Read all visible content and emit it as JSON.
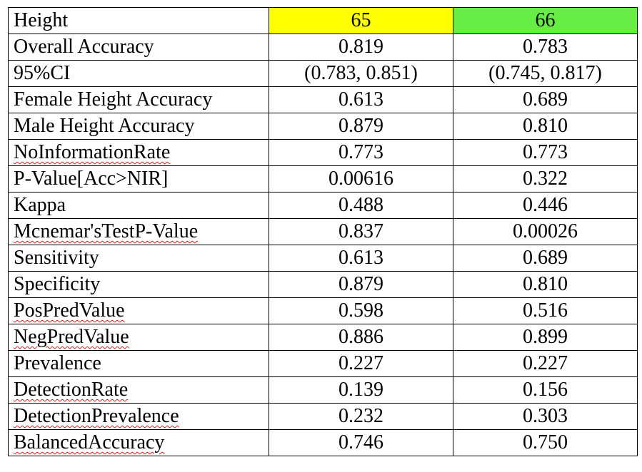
{
  "table": {
    "header": {
      "label": "Height",
      "columns": [
        "65",
        "66"
      ],
      "column_colors": [
        "#ffff00",
        "#66ee44"
      ]
    },
    "rows": [
      {
        "label": "Overall Accuracy",
        "values": [
          "0.819",
          "0.783"
        ]
      },
      {
        "label": "95%CI",
        "values": [
          "(0.783, 0.851)",
          "(0.745, 0.817)"
        ]
      },
      {
        "label": "Female Height Accuracy",
        "values": [
          "0.613",
          "0.689"
        ]
      },
      {
        "label": "Male Height Accuracy",
        "values": [
          "0.879",
          "0.810"
        ]
      },
      {
        "label": "NoInformationRate",
        "values": [
          "0.773",
          "0.773"
        ]
      },
      {
        "label": "P-Value[Acc>NIR]",
        "values": [
          "0.00616",
          "0.322"
        ]
      },
      {
        "label": "Kappa",
        "values": [
          "0.488",
          "0.446"
        ]
      },
      {
        "label": "Mcnemar'sTestP-Value",
        "values": [
          "0.837",
          "0.00026"
        ]
      },
      {
        "label": "Sensitivity",
        "values": [
          "0.613",
          "0.689"
        ]
      },
      {
        "label": "Specificity",
        "values": [
          "0.879",
          "0.810"
        ]
      },
      {
        "label": "PosPredValue",
        "values": [
          "0.598",
          "0.516"
        ]
      },
      {
        "label": "NegPredValue",
        "values": [
          "0.886",
          "0.899"
        ]
      },
      {
        "label": "Prevalence",
        "values": [
          "0.227",
          "0.227"
        ]
      },
      {
        "label": "DetectionRate",
        "values": [
          "0.139",
          "0.156"
        ]
      },
      {
        "label": "DetectionPrevalence",
        "values": [
          "0.232",
          "0.303"
        ]
      },
      {
        "label": "BalancedAccuracy",
        "values": [
          "0.746",
          "0.750"
        ]
      }
    ]
  }
}
